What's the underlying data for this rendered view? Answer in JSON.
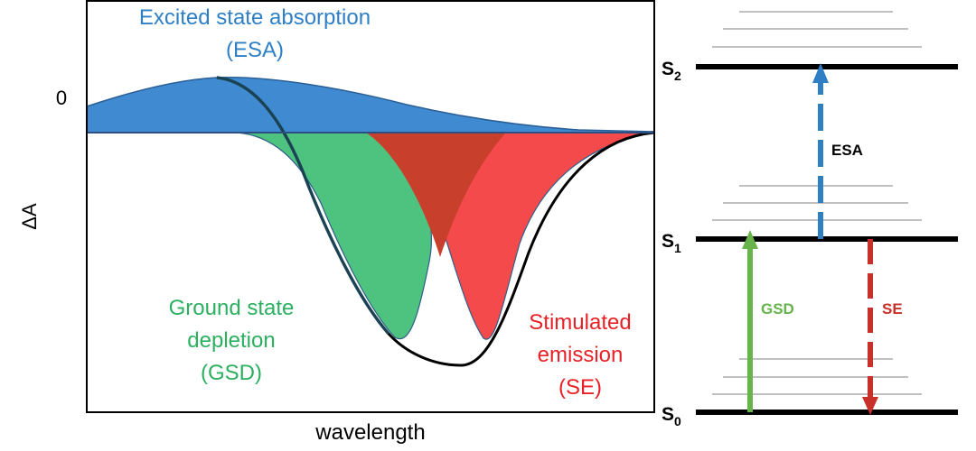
{
  "spectrum_panel": {
    "esa_label": [
      "Excited state absorption",
      "(ESA)"
    ],
    "gsd_label": [
      "Ground state",
      "depletion",
      "(GSD)"
    ],
    "se_label": [
      "Stimulated",
      "emission",
      "(SE)"
    ],
    "y_axis_label": "ΔA",
    "zero_label": "0",
    "x_axis_label": "wavelength"
  },
  "energy_panel": {
    "levels": [
      {
        "symbol": "S",
        "subscript": "2"
      },
      {
        "symbol": "S",
        "subscript": "1"
      },
      {
        "symbol": "S",
        "subscript": "0"
      }
    ],
    "arrows": {
      "esa": "ESA",
      "gsd": "GSD",
      "se": "SE"
    }
  },
  "colors": {
    "esa_blue": "#3f8ad0",
    "gsd_green": "#4ec27f",
    "se_red": "#f44a4c",
    "overlap_red": "#c8402c",
    "esa_text": "#2f7fc5",
    "gsd_text": "#2cb060",
    "se_text": "#e62226",
    "arrow_blue": "#2f7fc5",
    "arrow_green": "#66b44a",
    "arrow_red": "#c8302a"
  }
}
